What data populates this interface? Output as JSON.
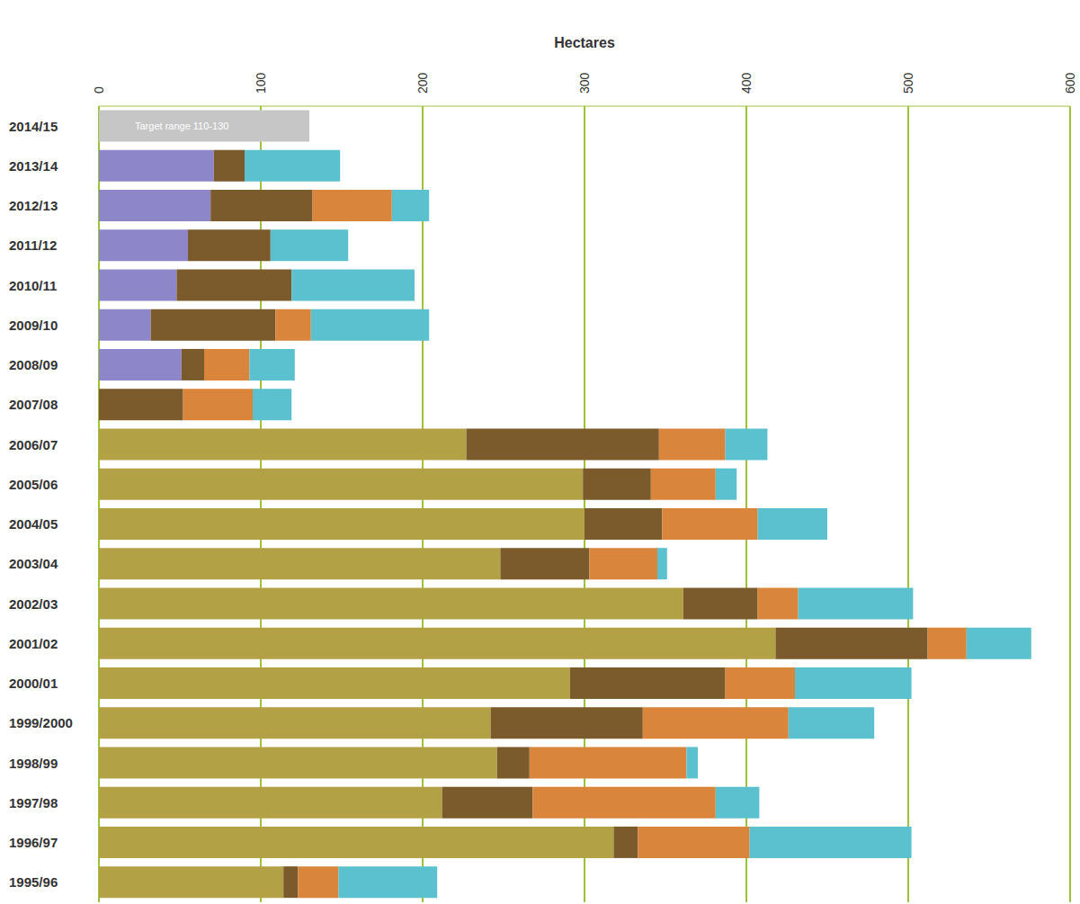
{
  "chart_data": {
    "type": "bar",
    "orientation": "horizontal",
    "stacked": true,
    "x_label": "Hectares",
    "categories": [
      "2014/15",
      "2013/14",
      "2012/13",
      "2011/12",
      "2010/11",
      "2009/10",
      "2008/09",
      "2007/08",
      "2006/07",
      "2005/06",
      "2004/05",
      "2003/04",
      "2002/03",
      "2001/02",
      "2000/01",
      "1999/2000",
      "1998/99",
      "1997/98",
      "1996/97",
      "1995/96"
    ],
    "series": [
      {
        "name": "Target range 110-130",
        "color": "#c6c6c6",
        "values": [
          130,
          null,
          null,
          null,
          null,
          null,
          null,
          null,
          null,
          null,
          null,
          null,
          null,
          null,
          null,
          null,
          null,
          null,
          null,
          null
        ]
      },
      {
        "color": "#b3a146",
        "values": [
          null,
          null,
          null,
          null,
          null,
          null,
          null,
          null,
          227,
          299,
          300,
          248,
          361,
          418,
          291,
          242,
          246,
          212,
          318,
          114
        ]
      },
      {
        "color": "#8d86c9",
        "values": [
          null,
          71,
          69,
          55,
          48,
          32,
          51,
          null,
          null,
          null,
          null,
          null,
          null,
          null,
          null,
          null,
          null,
          null,
          null,
          null
        ]
      },
      {
        "color": "#7b5a2b",
        "values": [
          null,
          19,
          63,
          51,
          71,
          77,
          14,
          52,
          119,
          42,
          48,
          55,
          46,
          94,
          96,
          94,
          20,
          56,
          15,
          9
        ]
      },
      {
        "color": "#d9853b",
        "values": [
          null,
          null,
          49,
          null,
          null,
          22,
          28,
          43,
          41,
          40,
          59,
          42,
          25,
          24,
          43,
          90,
          97,
          113,
          69,
          25
        ]
      },
      {
        "color": "#5bc1cf",
        "values": [
          null,
          59,
          23,
          48,
          76,
          73,
          28,
          24,
          26,
          13,
          43,
          6,
          71,
          40,
          72,
          53,
          7,
          27,
          100,
          61
        ]
      }
    ],
    "xlim": [
      0,
      600
    ],
    "xticks": [
      0,
      100,
      200,
      300,
      400,
      500,
      600
    ],
    "grid": true
  }
}
